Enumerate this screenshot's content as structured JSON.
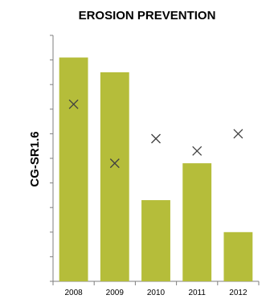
{
  "chart_data": {
    "type": "bar",
    "title": "EROSION PREVENTION",
    "xlabel": "",
    "ylabel": "CG-SR1.6",
    "categories": [
      "2008",
      "2009",
      "2010",
      "2011",
      "2012"
    ],
    "series": [
      {
        "type": "bar",
        "values": [
          9.1,
          8.5,
          3.3,
          4.8,
          2.0
        ],
        "color": "#b5bd3a"
      },
      {
        "type": "scatter",
        "marker": "x",
        "values": [
          7.2,
          4.8,
          5.8,
          5.3,
          6.0
        ],
        "color": "#404040"
      }
    ],
    "ylim": [
      0,
      10
    ],
    "ytick_count": 10,
    "show_y_tick_labels": false,
    "grid": false,
    "legend": "none"
  }
}
